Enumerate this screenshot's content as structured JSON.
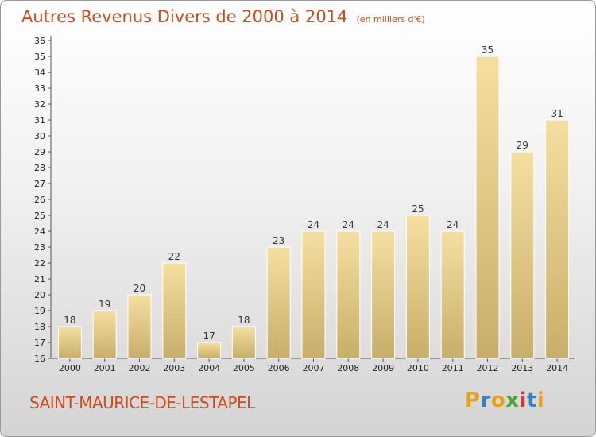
{
  "header": {
    "title": "Autres Revenus Divers de 2000 à 2014",
    "subtitle": "(en milliers d'€)"
  },
  "footer": {
    "town": "SAINT-MAURICE-DE-LESTAPEL",
    "logo_letters": [
      "P",
      "r",
      "o",
      "x",
      "i",
      "t",
      "i"
    ],
    "logo_colors": [
      "#e8a11a",
      "#3a7fc4",
      "#e8a11a",
      "#4aa832",
      "#d83a2c",
      "#3a7fc4",
      "#e8a11a"
    ]
  },
  "chart_data": {
    "type": "bar",
    "categories": [
      "2000",
      "2001",
      "2002",
      "2003",
      "2004",
      "2005",
      "2006",
      "2007",
      "2008",
      "2009",
      "2010",
      "2011",
      "2012",
      "2013",
      "2014"
    ],
    "values": [
      18,
      19,
      20,
      22,
      17,
      18,
      23,
      24,
      24,
      24,
      25,
      24,
      35,
      29,
      31
    ],
    "ylim": [
      16,
      36
    ],
    "ytick_step": 1,
    "grid": false,
    "bar_color_top": "#f5dfa0",
    "bar_color_bottom": "#c8ae6a"
  }
}
